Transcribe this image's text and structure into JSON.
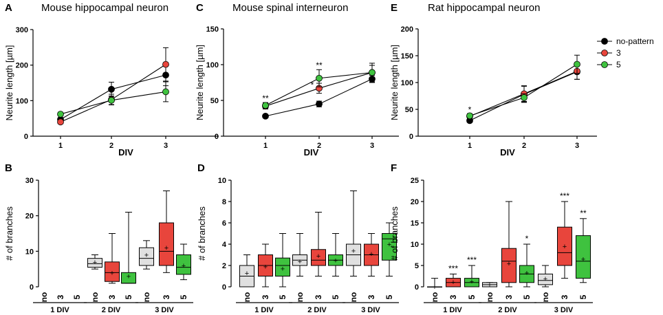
{
  "colors": {
    "no_pattern": "#000000",
    "p3": "#e8453c",
    "p5": "#3fc23f",
    "box_no": "#e0e0e0",
    "box_3": "#e8453c",
    "box_5": "#3fc23f"
  },
  "legend": {
    "items": [
      {
        "label": "no-pattern",
        "color": "#000000"
      },
      {
        "label": "3",
        "color": "#e8453c"
      },
      {
        "label": "5",
        "color": "#3fc23f"
      }
    ]
  },
  "chart_data": [
    {
      "id": "A",
      "type": "line",
      "letter": "A",
      "title": "Mouse hippocampal neuron",
      "xlabel": "DIV",
      "ylabel": "Neurite length [µm]",
      "categories": [
        "1",
        "2",
        "3"
      ],
      "yticks": [
        "0",
        "100",
        "200",
        "300"
      ],
      "ylim": [
        0,
        300
      ],
      "series": [
        {
          "name": "no-pattern",
          "color": "#000000",
          "values": [
            47,
            132,
            172
          ],
          "err": [
            5,
            20,
            30
          ]
        },
        {
          "name": "3",
          "color": "#e8453c",
          "values": [
            40,
            103,
            202
          ],
          "err": [
            5,
            15,
            47
          ]
        },
        {
          "name": "5",
          "color": "#3fc23f",
          "values": [
            62,
            101,
            125
          ],
          "err": [
            5,
            12,
            28
          ]
        }
      ],
      "annotations": []
    },
    {
      "id": "C",
      "type": "line",
      "letter": "C",
      "title": "Mouse spinal interneuron",
      "xlabel": "DIV",
      "ylabel": "Neurite length [µm]",
      "categories": [
        "1",
        "2",
        "3"
      ],
      "yticks": [
        "0",
        "50",
        "100",
        "150"
      ],
      "ylim": [
        0,
        150
      ],
      "series": [
        {
          "name": "no-pattern",
          "color": "#000000",
          "values": [
            28,
            45,
            80
          ],
          "err": [
            2,
            4,
            5
          ]
        },
        {
          "name": "3",
          "color": "#e8453c",
          "values": [
            42,
            67,
            89
          ],
          "err": [
            4,
            7,
            10
          ]
        },
        {
          "name": "5",
          "color": "#3fc23f",
          "values": [
            43,
            81,
            89
          ],
          "err": [
            4,
            12,
            13
          ]
        }
      ],
      "annotations": [
        {
          "cat": 0,
          "y": 49,
          "text": "**"
        },
        {
          "cat": 1,
          "y": 95,
          "text": "**"
        },
        {
          "cat": 1,
          "y": 68,
          "text": "*"
        }
      ]
    },
    {
      "id": "E",
      "type": "line",
      "letter": "E",
      "title": "Rat hippocampal neuron",
      "xlabel": "DIV",
      "ylabel": "Neurite length [µm]",
      "categories": [
        "1",
        "2",
        "3"
      ],
      "yticks": [
        "0",
        "50",
        "100",
        "150",
        "200"
      ],
      "ylim": [
        0,
        200
      ],
      "series": [
        {
          "name": "no-pattern",
          "color": "#000000",
          "values": [
            29,
            78,
            120
          ],
          "err": [
            3,
            15,
            14
          ]
        },
        {
          "name": "3",
          "color": "#e8453c",
          "values": [
            37,
            79,
            121
          ],
          "err": [
            4,
            15,
            15
          ]
        },
        {
          "name": "5",
          "color": "#3fc23f",
          "values": [
            38,
            72,
            134
          ],
          "err": [
            4,
            7,
            17
          ]
        }
      ],
      "annotations": [
        {
          "cat": 0,
          "y": 44,
          "text": "*"
        }
      ]
    },
    {
      "id": "B",
      "type": "box",
      "letter": "B",
      "ylabel": "# of branches",
      "ylim": [
        0,
        30
      ],
      "yticks": [
        "0",
        "10",
        "20",
        "30"
      ],
      "xlabels": [
        "no",
        "3",
        "5",
        "no",
        "3",
        "5",
        "no",
        "3",
        "5"
      ],
      "groups": [
        "1 DIV",
        "2 DIV",
        "3 DIV"
      ],
      "boxes": [
        null,
        null,
        null,
        {
          "min": 5,
          "q1": 5.5,
          "med": 6.5,
          "q3": 8,
          "max": 9,
          "mean": 7
        },
        {
          "min": 1,
          "q1": 1.5,
          "med": 4,
          "q3": 7,
          "max": 15,
          "mean": 4
        },
        {
          "min": 1,
          "q1": 1,
          "med": 1,
          "q3": 4,
          "max": 21,
          "mean": 3
        },
        {
          "min": 5,
          "q1": 6,
          "med": 8,
          "q3": 11,
          "max": 13,
          "mean": 9
        },
        {
          "min": 4,
          "q1": 6,
          "med": 10,
          "q3": 18,
          "max": 27,
          "mean": 11
        },
        {
          "min": 2,
          "q1": 3.5,
          "med": 5.5,
          "q3": 9,
          "max": 12,
          "mean": 6
        }
      ],
      "stars": []
    },
    {
      "id": "D",
      "type": "box",
      "letter": "D",
      "ylabel": "# of branches",
      "ylim": [
        0,
        10
      ],
      "yticks": [
        "0",
        "2",
        "4",
        "6",
        "8",
        "10"
      ],
      "xlabels": [
        "no",
        "3",
        "5",
        "no",
        "3",
        "5",
        "no",
        "3",
        "5"
      ],
      "groups": [
        "1 DIV",
        "2 DIV",
        "3 DIV"
      ],
      "boxes": [
        {
          "min": 0,
          "q1": 0,
          "med": 1,
          "q3": 2,
          "max": 3,
          "mean": 1.3
        },
        {
          "min": 0,
          "q1": 1,
          "med": 2,
          "q3": 3,
          "max": 4,
          "mean": 1.9
        },
        {
          "min": 0,
          "q1": 1,
          "med": 2,
          "q3": 2.7,
          "max": 5,
          "mean": 1.7
        },
        {
          "min": 1,
          "q1": 2,
          "med": 2.5,
          "q3": 3,
          "max": 5,
          "mean": 2.4
        },
        {
          "min": 1,
          "q1": 2,
          "med": 2.5,
          "q3": 3.5,
          "max": 7,
          "mean": 2.9
        },
        {
          "min": 1,
          "q1": 2,
          "med": 2.5,
          "q3": 3,
          "max": 5,
          "mean": 2.5
        },
        {
          "min": 1,
          "q1": 2,
          "med": 3,
          "q3": 4,
          "max": 9,
          "mean": 3.4
        },
        {
          "min": 1,
          "q1": 2,
          "med": 3,
          "q3": 4,
          "max": 5,
          "mean": 3.1
        },
        {
          "min": 1,
          "q1": 2.5,
          "med": 4.5,
          "q3": 5,
          "max": 6,
          "mean": 4
        }
      ],
      "stars": []
    },
    {
      "id": "F",
      "type": "box",
      "letter": "F",
      "ylabel": "# of branches",
      "ylim": [
        0,
        25
      ],
      "yticks": [
        "0",
        "5",
        "10",
        "15",
        "20",
        "25"
      ],
      "xlabels": [
        "no",
        "3",
        "5",
        "no",
        "3",
        "5",
        "no",
        "3",
        "5"
      ],
      "groups": [
        "1 DIV",
        "2 DIV",
        "3 DIV"
      ],
      "boxes": [
        {
          "min": 0,
          "q1": 0,
          "med": 0,
          "q3": 0,
          "max": 2,
          "mean": 0
        },
        {
          "min": 0,
          "q1": 0,
          "med": 1,
          "q3": 2,
          "max": 3,
          "mean": 1.1
        },
        {
          "min": 0,
          "q1": 0,
          "med": 1,
          "q3": 2,
          "max": 5,
          "mean": 1.3
        },
        {
          "min": 0,
          "q1": 0,
          "med": 0.5,
          "q3": 1,
          "max": 1,
          "mean": 0.6
        },
        {
          "min": 0,
          "q1": 1,
          "med": 6,
          "q3": 9,
          "max": 20,
          "mean": 5.5
        },
        {
          "min": 0,
          "q1": 1,
          "med": 3,
          "q3": 5,
          "max": 10,
          "mean": 3.3
        },
        {
          "min": 0,
          "q1": 0.5,
          "med": 1.5,
          "q3": 3,
          "max": 5,
          "mean": 1.9
        },
        {
          "min": 2,
          "q1": 5,
          "med": 8,
          "q3": 14,
          "max": 20,
          "mean": 9.5
        },
        {
          "min": 1,
          "q1": 2,
          "med": 6,
          "q3": 12,
          "max": 16,
          "mean": 6.5
        }
      ],
      "stars": [
        {
          "i": 1,
          "text": "***"
        },
        {
          "i": 2,
          "text": "***"
        },
        {
          "i": 5,
          "text": "*"
        },
        {
          "i": 7,
          "text": "***"
        },
        {
          "i": 8,
          "text": "**"
        }
      ]
    }
  ]
}
